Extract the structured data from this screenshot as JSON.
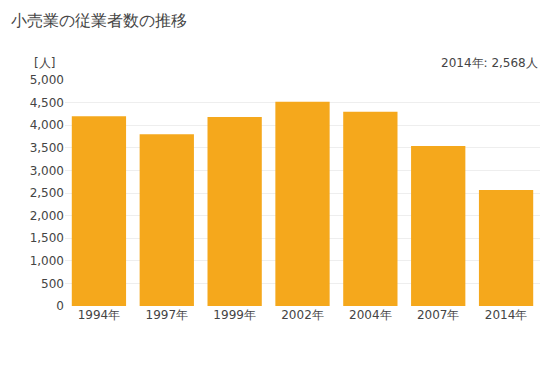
{
  "chart_data": {
    "type": "bar",
    "title": "小売業の従業者数の推移",
    "ylabel": "[人]",
    "annotation": "2014年: 2,568人",
    "categories": [
      "1994年",
      "1997年",
      "1999年",
      "2002年",
      "2004年",
      "2007年",
      "2014年"
    ],
    "values": [
      4200,
      3800,
      4180,
      4520,
      4300,
      3540,
      2568
    ],
    "color": "#F5A81C",
    "ylim": [
      0,
      5000
    ],
    "yticks": [
      0,
      500,
      {
        "value": 1000,
        "label": "1,000"
      },
      {
        "value": 1500,
        "label": "1,500"
      },
      {
        "value": 2000,
        "label": "2,000"
      },
      {
        "value": 2500,
        "label": "2,500"
      },
      {
        "value": 3000,
        "label": "3,000"
      },
      {
        "value": 3500,
        "label": "3,500"
      },
      {
        "value": 4000,
        "label": "4,000"
      },
      {
        "value": 4500,
        "label": "4,500"
      },
      {
        "value": 5000,
        "label": "5,000"
      }
    ],
    "grid": true
  }
}
